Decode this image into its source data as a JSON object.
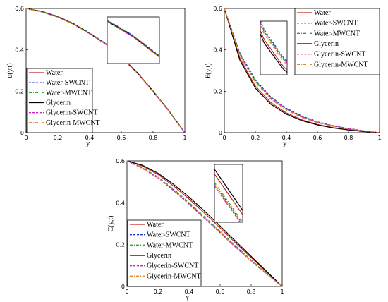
{
  "chart_data": [
    {
      "type": "line",
      "id": "u",
      "xlabel": "y",
      "ylabel": "u(y,t)",
      "xlim": [
        0,
        1
      ],
      "ylim": [
        0,
        0.6
      ],
      "xticks": [
        "0",
        "0.2",
        "0.4",
        "0.6",
        "0.8",
        "1"
      ],
      "yticks": [
        "0",
        "0.2",
        "0.4",
        "0.6"
      ],
      "x": [
        0,
        0.1,
        0.2,
        0.3,
        0.4,
        0.5,
        0.6,
        0.7,
        0.8,
        0.9,
        1.0
      ],
      "series": [
        {
          "name": "Water",
          "values": [
            0.6,
            0.585,
            0.56,
            0.525,
            0.48,
            0.43,
            0.365,
            0.29,
            0.2,
            0.105,
            0.0
          ]
        },
        {
          "name": "Water-SWCNT",
          "values": [
            0.6,
            0.586,
            0.562,
            0.527,
            0.482,
            0.432,
            0.367,
            0.292,
            0.202,
            0.106,
            0.0
          ]
        },
        {
          "name": "Water-MWCNT",
          "values": [
            0.6,
            0.586,
            0.561,
            0.526,
            0.481,
            0.431,
            0.366,
            0.291,
            0.201,
            0.106,
            0.0
          ]
        },
        {
          "name": "Glycerin",
          "values": [
            0.6,
            0.584,
            0.559,
            0.524,
            0.479,
            0.429,
            0.364,
            0.289,
            0.199,
            0.104,
            0.0
          ]
        },
        {
          "name": "Glycerin-SWCNT",
          "values": [
            0.6,
            0.583,
            0.558,
            0.523,
            0.478,
            0.428,
            0.363,
            0.288,
            0.198,
            0.104,
            0.0
          ]
        },
        {
          "name": "Glycerin-MWCNT",
          "values": [
            0.6,
            0.583,
            0.558,
            0.523,
            0.478,
            0.428,
            0.363,
            0.288,
            0.198,
            0.103,
            0.0
          ]
        }
      ]
    },
    {
      "type": "line",
      "id": "theta",
      "xlabel": "y",
      "ylabel": "θ(y,t)",
      "xlim": [
        0,
        1
      ],
      "ylim": [
        0,
        0.6
      ],
      "xticks": [
        "0",
        "0.2",
        "0.4",
        "0.6",
        "0.8",
        "1"
      ],
      "yticks": [
        "0",
        "0.2",
        "0.4",
        "0.6"
      ],
      "x": [
        0,
        0.1,
        0.2,
        0.3,
        0.4,
        0.5,
        0.6,
        0.7,
        0.8,
        0.9,
        1.0
      ],
      "series": [
        {
          "name": "Water",
          "values": [
            0.6,
            0.36,
            0.225,
            0.145,
            0.095,
            0.062,
            0.04,
            0.025,
            0.014,
            0.006,
            0.0
          ]
        },
        {
          "name": "Water-SWCNT",
          "values": [
            0.6,
            0.385,
            0.255,
            0.172,
            0.118,
            0.08,
            0.053,
            0.034,
            0.02,
            0.009,
            0.0
          ]
        },
        {
          "name": "Water-MWCNT",
          "values": [
            0.6,
            0.38,
            0.25,
            0.168,
            0.115,
            0.077,
            0.051,
            0.033,
            0.019,
            0.008,
            0.0
          ]
        },
        {
          "name": "Glycerin",
          "values": [
            0.6,
            0.35,
            0.215,
            0.137,
            0.089,
            0.058,
            0.037,
            0.023,
            0.013,
            0.005,
            0.0
          ]
        },
        {
          "name": "Glycerin-SWCNT",
          "values": [
            0.6,
            0.378,
            0.248,
            0.166,
            0.113,
            0.076,
            0.05,
            0.032,
            0.019,
            0.008,
            0.0
          ]
        },
        {
          "name": "Glycerin-MWCNT",
          "values": [
            0.6,
            0.372,
            0.242,
            0.161,
            0.109,
            0.073,
            0.048,
            0.031,
            0.018,
            0.008,
            0.0
          ]
        }
      ]
    },
    {
      "type": "line",
      "id": "C",
      "xlabel": "y",
      "ylabel": "C(y,t)",
      "xlim": [
        0,
        1
      ],
      "ylim": [
        0,
        0.6
      ],
      "xticks": [
        "0",
        "0.2",
        "0.4",
        "0.6",
        "0.8",
        "1"
      ],
      "yticks": [
        "0",
        "0.2",
        "0.4",
        "0.6"
      ],
      "x": [
        0,
        0.1,
        0.2,
        0.3,
        0.4,
        0.5,
        0.6,
        0.7,
        0.8,
        0.9,
        1.0
      ],
      "series": [
        {
          "name": "Water",
          "values": [
            0.6,
            0.575,
            0.535,
            0.48,
            0.418,
            0.35,
            0.28,
            0.208,
            0.138,
            0.068,
            0.0
          ]
        },
        {
          "name": "Water-SWCNT",
          "values": [
            0.6,
            0.566,
            0.52,
            0.462,
            0.397,
            0.329,
            0.26,
            0.19,
            0.124,
            0.06,
            0.0
          ]
        },
        {
          "name": "Water-MWCNT",
          "values": [
            0.6,
            0.568,
            0.523,
            0.466,
            0.401,
            0.333,
            0.264,
            0.194,
            0.127,
            0.062,
            0.0
          ]
        },
        {
          "name": "Glycerin",
          "values": [
            0.6,
            0.579,
            0.541,
            0.488,
            0.427,
            0.36,
            0.289,
            0.216,
            0.144,
            0.072,
            0.0
          ]
        },
        {
          "name": "Glycerin-SWCNT",
          "values": [
            0.6,
            0.564,
            0.517,
            0.458,
            0.393,
            0.325,
            0.256,
            0.187,
            0.121,
            0.059,
            0.0
          ]
        },
        {
          "name": "Glycerin-MWCNT",
          "values": [
            0.6,
            0.566,
            0.52,
            0.461,
            0.396,
            0.328,
            0.259,
            0.19,
            0.124,
            0.06,
            0.0
          ]
        }
      ]
    }
  ],
  "styles": [
    {
      "color": "#cc2222",
      "dash": ""
    },
    {
      "color": "#2233cc",
      "dash": "3,2"
    },
    {
      "color": "#22aa22",
      "dash": "4,2,1,2"
    },
    {
      "color": "#000000",
      "dash": ""
    },
    {
      "color": "#cc22cc",
      "dash": "3,2"
    },
    {
      "color": "#dd8822",
      "dash": "4,2,1,2"
    }
  ]
}
